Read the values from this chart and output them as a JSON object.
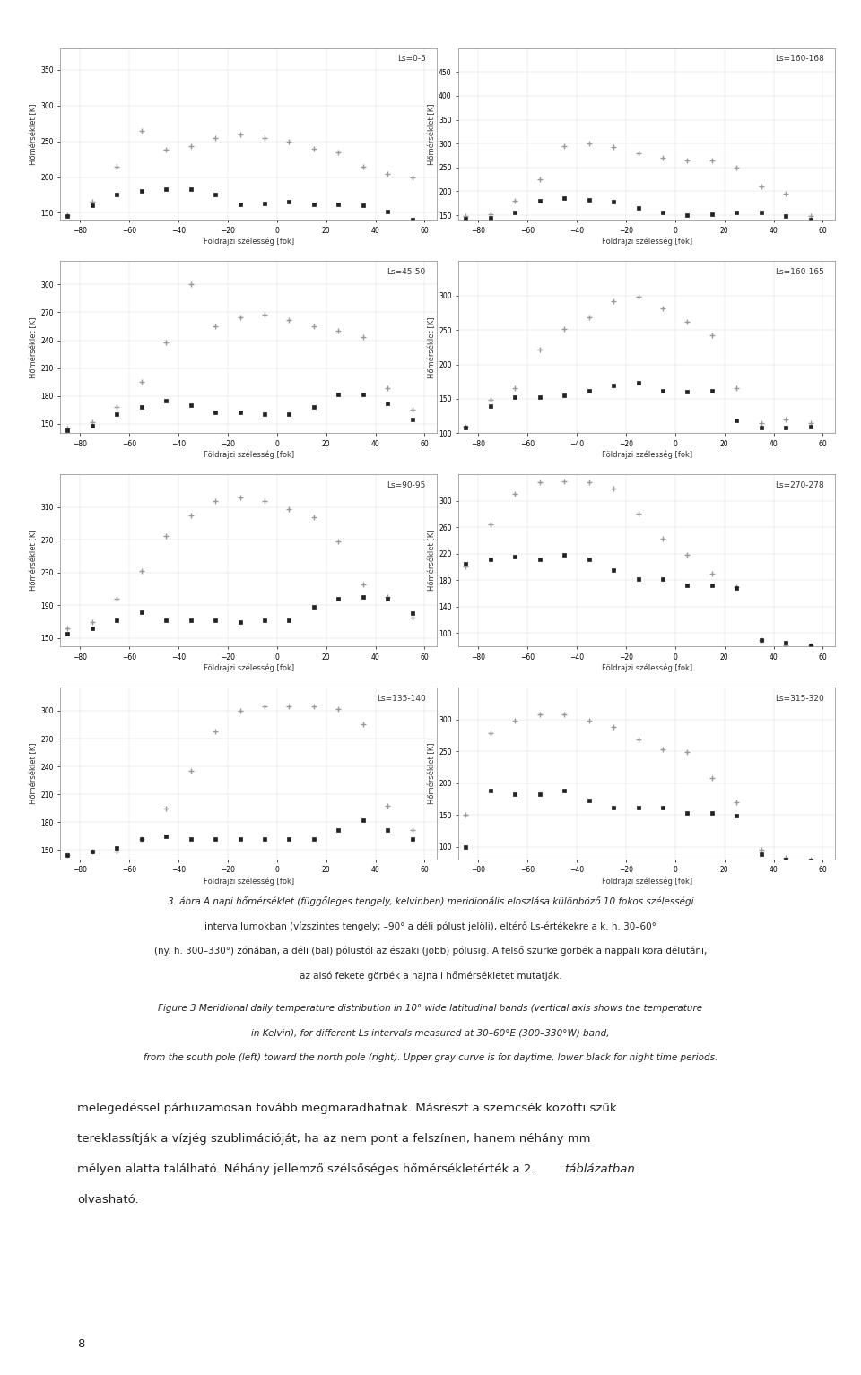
{
  "nrows": 4,
  "ncols": 2,
  "figsize": [
    9.6,
    15.34
  ],
  "xlabel": "Földrajzi szélesség [fok]",
  "ylabel": "Hőmérséklet [K]",
  "x_ticks": [
    -80,
    -60,
    -40,
    -20,
    0,
    20,
    40,
    60
  ],
  "xlim": [
    -88,
    65
  ],
  "color_day": "#999999",
  "color_night": "#222222",
  "marker_day": "+",
  "marker_night": "s",
  "marker_size_day": 5,
  "marker_size_night": 3.5,
  "mew_day": 1.0,
  "mew_night": 0.5,
  "text_color": "#333333",
  "axis_label_fontsize": 6,
  "tick_fontsize": 5.5,
  "label_fontsize": 6.5,
  "plots": [
    {
      "label": "Ls=0-5",
      "ylim": [
        140,
        380
      ],
      "yticks": [
        150,
        200,
        250,
        300,
        350
      ],
      "day_x": [
        -85,
        -75,
        -65,
        -55,
        -45,
        -35,
        -25,
        -15,
        -5,
        5,
        15,
        25,
        35,
        45,
        55
      ],
      "day_y": [
        147,
        165,
        215,
        265,
        238,
        243,
        255,
        260,
        255,
        250,
        240,
        235,
        215,
        205,
        200
      ],
      "night_x": [
        -85,
        -75,
        -65,
        -55,
        -45,
        -35,
        -25,
        -15,
        -5,
        5,
        15,
        25,
        35,
        45,
        55
      ],
      "night_y": [
        145,
        160,
        175,
        180,
        183,
        183,
        175,
        162,
        163,
        165,
        162,
        162,
        160,
        152,
        140
      ]
    },
    {
      "label": "Ls=160-168",
      "ylim": [
        140,
        500
      ],
      "yticks": [
        150,
        200,
        250,
        300,
        350,
        400,
        450
      ],
      "day_x": [
        -85,
        -75,
        -65,
        -55,
        -45,
        -35,
        -25,
        -15,
        -5,
        5,
        15,
        25,
        35,
        45,
        55
      ],
      "day_y": [
        148,
        152,
        180,
        225,
        295,
        300,
        293,
        280,
        270,
        265,
        265,
        250,
        210,
        195,
        148
      ],
      "night_x": [
        -85,
        -75,
        -65,
        -55,
        -45,
        -35,
        -25,
        -15,
        -5,
        5,
        15,
        25,
        35,
        45,
        55
      ],
      "night_y": [
        143,
        145,
        155,
        180,
        185,
        183,
        178,
        165,
        155,
        150,
        153,
        155,
        155,
        148,
        140
      ]
    },
    {
      "label": "Ls=45-50",
      "ylim": [
        140,
        325
      ],
      "yticks": [
        150,
        180,
        210,
        240,
        270,
        300
      ],
      "day_x": [
        -85,
        -75,
        -65,
        -55,
        -45,
        -35,
        -25,
        -15,
        -5,
        5,
        15,
        25,
        35,
        45,
        55
      ],
      "day_y": [
        145,
        152,
        168,
        195,
        238,
        300,
        255,
        265,
        268,
        262,
        255,
        250,
        243,
        188,
        165
      ],
      "night_x": [
        -85,
        -75,
        -65,
        -55,
        -45,
        -35,
        -25,
        -15,
        -5,
        5,
        15,
        25,
        35,
        45,
        55
      ],
      "night_y": [
        143,
        148,
        160,
        168,
        175,
        170,
        162,
        162,
        160,
        160,
        168,
        182,
        182,
        172,
        155
      ]
    },
    {
      "label": "Ls=160-165",
      "ylim": [
        100,
        350
      ],
      "yticks": [
        100,
        150,
        200,
        250,
        300
      ],
      "day_x": [
        -85,
        -75,
        -65,
        -55,
        -45,
        -35,
        -25,
        -15,
        -5,
        5,
        15,
        25,
        35,
        45,
        55
      ],
      "day_y": [
        110,
        148,
        165,
        222,
        252,
        268,
        292,
        298,
        282,
        262,
        242,
        165,
        115,
        120,
        115
      ],
      "night_x": [
        -85,
        -75,
        -65,
        -55,
        -45,
        -35,
        -25,
        -15,
        -5,
        5,
        15,
        25,
        35,
        45,
        55
      ],
      "night_y": [
        108,
        140,
        152,
        152,
        155,
        162,
        170,
        173,
        162,
        160,
        162,
        118,
        108,
        108,
        110
      ]
    },
    {
      "label": "Ls=90-95",
      "ylim": [
        140,
        350
      ],
      "yticks": [
        150,
        190,
        230,
        270,
        310
      ],
      "day_x": [
        -85,
        -75,
        -65,
        -55,
        -45,
        -35,
        -25,
        -15,
        -5,
        5,
        15,
        25,
        35,
        45,
        55
      ],
      "day_y": [
        162,
        170,
        198,
        232,
        275,
        300,
        317,
        322,
        317,
        308,
        298,
        268,
        215,
        200,
        175
      ],
      "night_x": [
        -85,
        -75,
        -65,
        -55,
        -45,
        -35,
        -25,
        -15,
        -5,
        5,
        15,
        25,
        35,
        45,
        55
      ],
      "night_y": [
        155,
        162,
        172,
        182,
        172,
        172,
        172,
        170,
        172,
        172,
        188,
        198,
        200,
        198,
        180
      ]
    },
    {
      "label": "Ls=270-278",
      "ylim": [
        80,
        340
      ],
      "yticks": [
        100,
        140,
        180,
        220,
        260,
        300
      ],
      "day_x": [
        -85,
        -75,
        -65,
        -55,
        -45,
        -35,
        -25,
        -15,
        -5,
        5,
        15,
        25,
        35,
        45,
        55
      ],
      "day_y": [
        200,
        265,
        310,
        328,
        330,
        328,
        318,
        280,
        243,
        218,
        190,
        170,
        90,
        82,
        82
      ],
      "night_x": [
        -85,
        -75,
        -65,
        -55,
        -45,
        -35,
        -25,
        -15,
        -5,
        5,
        15,
        25,
        35,
        45,
        55
      ],
      "night_y": [
        205,
        212,
        215,
        212,
        218,
        212,
        195,
        182,
        182,
        172,
        172,
        168,
        90,
        85,
        82
      ]
    },
    {
      "label": "Ls=135-140",
      "ylim": [
        140,
        325
      ],
      "yticks": [
        150,
        180,
        210,
        240,
        270,
        300
      ],
      "day_x": [
        -85,
        -75,
        -65,
        -55,
        -45,
        -35,
        -25,
        -15,
        -5,
        5,
        15,
        25,
        35,
        45,
        55
      ],
      "day_y": [
        145,
        148,
        148,
        162,
        195,
        235,
        278,
        300,
        305,
        305,
        305,
        302,
        285,
        198,
        172
      ],
      "night_x": [
        -85,
        -75,
        -65,
        -55,
        -45,
        -35,
        -25,
        -15,
        -5,
        5,
        15,
        25,
        35,
        45,
        55
      ],
      "night_y": [
        145,
        148,
        152,
        162,
        165,
        162,
        162,
        162,
        162,
        162,
        162,
        172,
        182,
        172,
        162
      ]
    },
    {
      "label": "Ls=315-320",
      "ylim": [
        80,
        350
      ],
      "yticks": [
        100,
        150,
        200,
        250,
        300
      ],
      "day_x": [
        -85,
        -75,
        -65,
        -55,
        -45,
        -35,
        -25,
        -15,
        -5,
        5,
        15,
        25,
        35,
        45,
        55
      ],
      "day_y": [
        150,
        278,
        298,
        308,
        308,
        298,
        288,
        268,
        253,
        248,
        208,
        170,
        95,
        82,
        80
      ],
      "night_x": [
        -85,
        -75,
        -65,
        -55,
        -45,
        -35,
        -25,
        -15,
        -5,
        5,
        15,
        25,
        35,
        45,
        55
      ],
      "night_y": [
        100,
        188,
        182,
        182,
        188,
        172,
        162,
        162,
        162,
        153,
        153,
        148,
        88,
        80,
        78
      ]
    }
  ],
  "caption_lines_italic": "3. ábra A napi hőmérséklet (függőleges tengely, kelvinben) meridionális eloszlása különböző 10 fokos szélességi",
  "caption_lines": [
    "intervallumokban (vízszintes tengely; –90° a déli pólust jelöli), eltérő Ls-értékekre a k. h. 30–60°",
    "(ny. h. 300–330°) zónában, a déli (bal) pólustól az északi (jobb) pólusig. A felső szürke görbék a nappali kora délutáni,",
    "az alsó fekete görbék a hajnali hőmérsékletet mutatják."
  ],
  "caption_lines_en": [
    "Figure 3 Meridional daily temperature distribution in 10° wide latitudinal bands (vertical axis shows the temperature",
    "in Kelvin), for different Ls intervals measured at 30–60°E (300–330°W) band,",
    "from the south pole (left) toward the north pole (right). Upper gray curve is for daytime, lower black for night time periods."
  ],
  "page_text_above": "melegedéssel párhuzamosan tovább megmaradhatnak. Másrészt a szemcsék közötti szűk",
  "page_text_above2": "tereklassítják a vízjég szublimációját, ha az nem pont a felszínen, hanem néhány mm",
  "page_text_above3": "mélyen alatta található. Néhány jellemző szélsőséges hőmérsékletérték a 2. ",
  "page_number": "8"
}
